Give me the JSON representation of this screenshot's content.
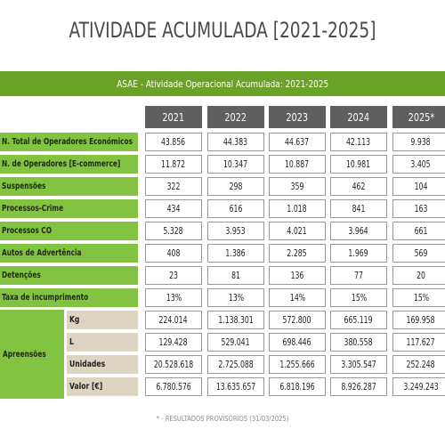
{
  "title": "ATIVIDADE ACUMULADA [2021-2025]",
  "banner": "ASAE - Atividade Operacional Acumulada: 2021-2025",
  "years": [
    "2021",
    "2022",
    "2023",
    "2024",
    "2025*"
  ],
  "rows": [
    {
      "label": "N. Total de Operadores Económicos",
      "values": [
        "43.856",
        "44.383",
        "44.637",
        "42.113",
        "9.938"
      ]
    },
    {
      "label": "N. de Operadores [E-commerce]",
      "values": [
        "11.872",
        "10.347",
        "10.887",
        "10.981",
        "3.405"
      ]
    },
    {
      "label": "Suspensões",
      "values": [
        "322",
        "298",
        "359",
        "462",
        "104"
      ]
    },
    {
      "label": "Processos-Crime",
      "values": [
        "434",
        "616",
        "1.018",
        "841",
        "163"
      ]
    },
    {
      "label": "Processos CO",
      "values": [
        "5.328",
        "3.953",
        "4.021",
        "3.964",
        "661"
      ]
    },
    {
      "label": "Autos de Advertência",
      "values": [
        "408",
        "1.386",
        "2.285",
        "1.969",
        "569"
      ]
    },
    {
      "label": "Detenções",
      "values": [
        "23",
        "81",
        "136",
        "77",
        "20"
      ]
    },
    {
      "label": "Taxa de incumprimento",
      "values": [
        "13%",
        "13%",
        "14%",
        "15%",
        "15%"
      ]
    }
  ],
  "apreensoes": {
    "label": "Apreensões",
    "subrows": [
      {
        "label": "Kg",
        "values": [
          "224.014",
          "1.138.301",
          "572.800",
          "665.119",
          "169.958"
        ]
      },
      {
        "label": "L",
        "values": [
          "129.428",
          "529.041",
          "698.446",
          "380.558",
          "117.627"
        ]
      },
      {
        "label": "Unidades",
        "values": [
          "20.528.618",
          "2.725.088",
          "1.255.666",
          "3.305.547",
          "252.248"
        ]
      },
      {
        "label": "Valor [€]",
        "values": [
          "6.780.576",
          "13.635.657",
          "6.818.196",
          "8.926.287",
          "3.249.243"
        ]
      }
    ]
  },
  "footnote": "* - RESULTADOS PROVISÓRIOS (31/03/2025)"
}
